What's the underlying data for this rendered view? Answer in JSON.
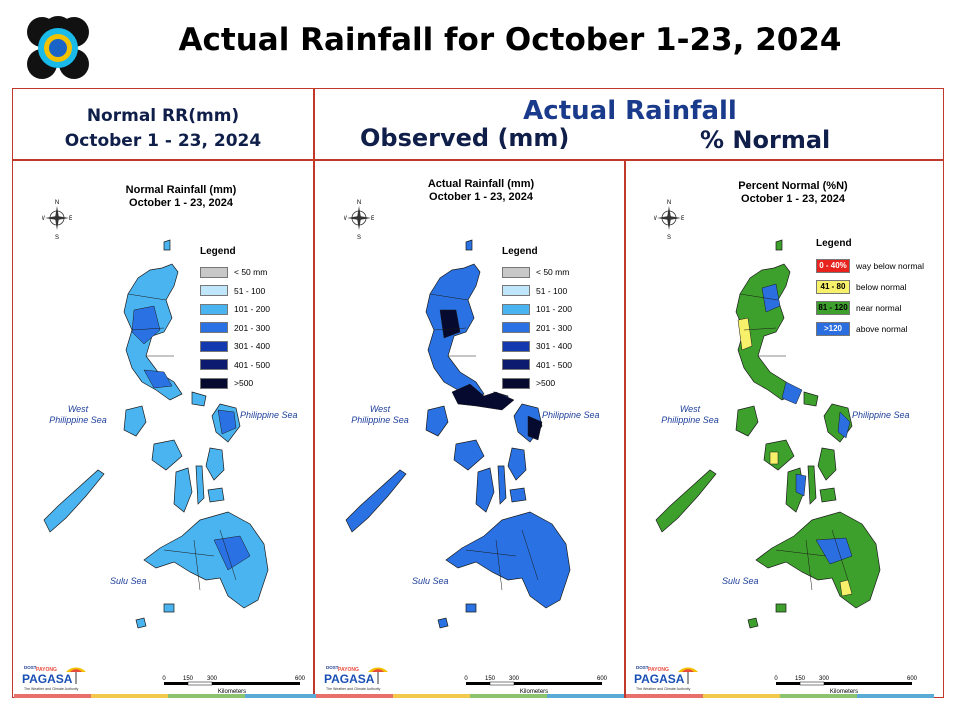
{
  "slide_title": "Actual Rainfall for October 1-23, 2024",
  "header": {
    "normal_line1": "Normal RR(mm)",
    "normal_line2": "October 1 - 23, 2024",
    "actual": "Actual Rainfall",
    "observed": "Observed (mm)",
    "percent": "% Normal"
  },
  "panels": [
    {
      "title1": "Normal Rainfall (mm)",
      "title2": "October 1 - 23, 2024",
      "legend_title": "Legend",
      "legend": [
        {
          "label": "< 50 mm",
          "color": "#c8c8c8"
        },
        {
          "label": "51 - 100",
          "color": "#bfe6fb"
        },
        {
          "label": "101 - 200",
          "color": "#4ab4f0"
        },
        {
          "label": "201 - 300",
          "color": "#2a72e4"
        },
        {
          "label": "301 - 400",
          "color": "#1438b0"
        },
        {
          "label": "401 - 500",
          "color": "#0c1a70"
        },
        {
          "label": ">500",
          "color": "#050a2e"
        }
      ]
    },
    {
      "title1": "Actual Rainfall (mm)",
      "title2": "October 1 - 23, 2024",
      "legend_title": "Legend",
      "legend": [
        {
          "label": "< 50 mm",
          "color": "#c8c8c8"
        },
        {
          "label": "51 - 100",
          "color": "#bfe6fb"
        },
        {
          "label": "101 - 200",
          "color": "#4ab4f0"
        },
        {
          "label": "201 - 300",
          "color": "#2a72e4"
        },
        {
          "label": "301 - 400",
          "color": "#1438b0"
        },
        {
          "label": "401 - 500",
          "color": "#0c1a70"
        },
        {
          "label": ">500",
          "color": "#050a2e"
        }
      ]
    },
    {
      "title1": "Percent Normal (%N)",
      "title2": "October 1 - 23, 2024",
      "legend_title": "Legend",
      "legend": [
        {
          "swatch": "0 - 40%",
          "label": "way below normal",
          "color": "#e8231e"
        },
        {
          "swatch": "41 - 80",
          "label": "below normal",
          "color": "#f6f06a"
        },
        {
          "swatch": "81 - 120",
          "label": "near normal",
          "color": "#3ea02c"
        },
        {
          "swatch": ">120",
          "label": "above normal",
          "color": "#2a6ee0"
        }
      ]
    }
  ],
  "seas": {
    "west_line1": "West",
    "west_line2": "Philippine Sea",
    "philippine": "Philippine Sea",
    "sulu": "Sulu Sea"
  },
  "compass": {
    "n": "N",
    "s": "S",
    "e": "E",
    "w": "W"
  },
  "scale": {
    "ticks": [
      "0",
      "150",
      "300",
      "600"
    ],
    "unit": "Kilometers"
  },
  "brand": {
    "name": "PAGASA",
    "tagline": "The Weather and Climate Authority",
    "badge": "DOST",
    "payong": "PAYONG"
  },
  "map_colors": {
    "normal_fill": "#4ab4f0",
    "normal_high": "#2a72e4",
    "actual_fill": "#2a72e4",
    "actual_high": "#050a2e",
    "pct_fill": "#3ea02c",
    "pct_high": "#2a6ee0",
    "pct_low": "#f6f06a"
  }
}
